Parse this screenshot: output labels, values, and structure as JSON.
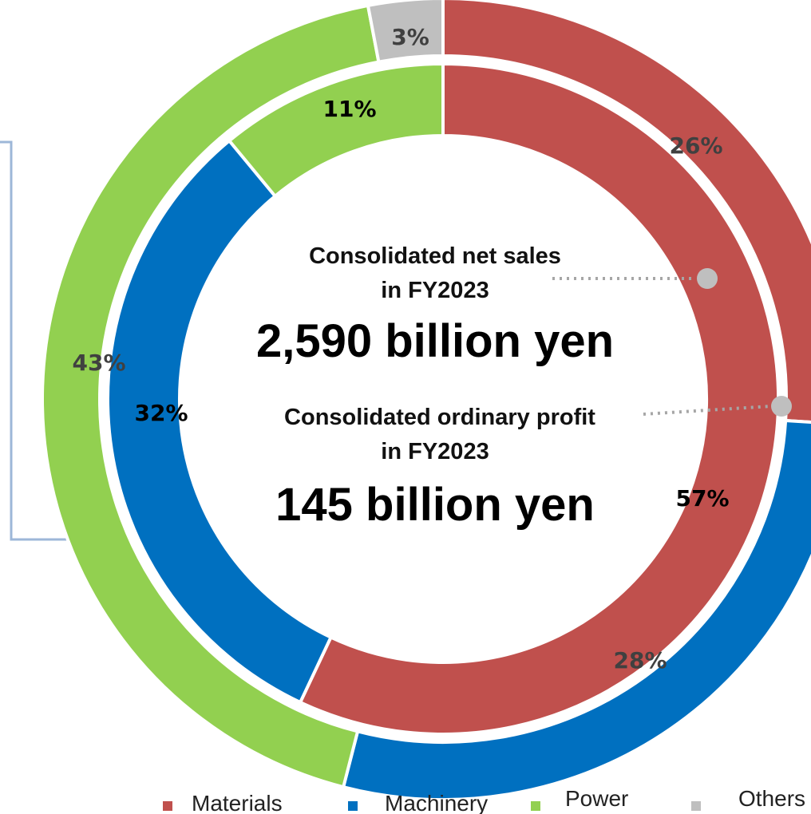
{
  "colors": {
    "materials": "#C0504D",
    "machinery": "#0070C0",
    "power": "#92D050",
    "others": "#BFBFBF",
    "callout_line": "#9DB7D8",
    "leader_dot": "#BFBFBF"
  },
  "center": {
    "sales_title_line1": "Consolidated net sales",
    "sales_title_line2": "in FY2023",
    "sales_value": "2,590 billion yen",
    "profit_title_line1": "Consolidated ordinary profit",
    "profit_title_line2": "in FY2023",
    "profit_value": "145 billion yen"
  },
  "legend": [
    {
      "label": "Materials",
      "color": "#C0504D"
    },
    {
      "label": "Machinery",
      "color": "#0070C0"
    },
    {
      "label": "Power",
      "color": "#92D050"
    },
    {
      "label": "Others",
      "color": "#BFBFBF"
    }
  ],
  "chart_data": {
    "type": "pie",
    "variant": "nested donut",
    "rings": [
      {
        "ring": "outer",
        "measure": "Consolidated net sales in FY2023",
        "slices": [
          {
            "category": "Materials",
            "value": 26,
            "label": "26%"
          },
          {
            "category": "Machinery",
            "value": 28,
            "label": "28%"
          },
          {
            "category": "Power",
            "value": 43,
            "label": "43%"
          },
          {
            "category": "Others",
            "value": 3,
            "label": "3%"
          }
        ]
      },
      {
        "ring": "inner",
        "measure": "Consolidated ordinary profit in FY2023",
        "slices": [
          {
            "category": "Materials",
            "value": 57,
            "label": "57%"
          },
          {
            "category": "Machinery",
            "value": 32,
            "label": "32%"
          },
          {
            "category": "Power",
            "value": 11,
            "label": "11%"
          }
        ]
      }
    ],
    "legend_position": "bottom-right"
  }
}
